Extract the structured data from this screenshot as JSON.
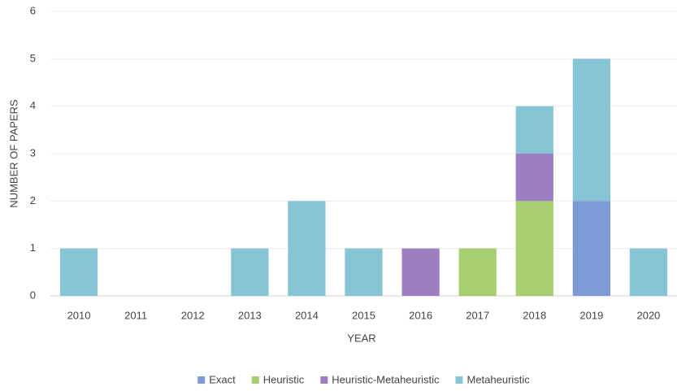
{
  "chart_data": {
    "type": "stacked_bar",
    "x_label": "YEAR",
    "y_label": "NUMBER OF PAPERS",
    "categories": [
      "2010",
      "2011",
      "2012",
      "2013",
      "2014",
      "2015",
      "2016",
      "2017",
      "2018",
      "2019",
      "2020"
    ],
    "series": [
      {
        "name": "Exact",
        "color": "#7f9bd5",
        "values": [
          0,
          0,
          0,
          0,
          0,
          0,
          0,
          0,
          0,
          2,
          0
        ]
      },
      {
        "name": "Heuristic",
        "color": "#a8cf6f",
        "values": [
          0,
          0,
          0,
          0,
          0,
          0,
          0,
          1,
          2,
          0,
          0
        ]
      },
      {
        "name": "Heuristic-Metaheuristic",
        "color": "#9d7fc1",
        "values": [
          0,
          0,
          0,
          0,
          0,
          0,
          1,
          0,
          1,
          0,
          0
        ]
      },
      {
        "name": "Metaheuristic",
        "color": "#88c5d4",
        "values": [
          1,
          0,
          0,
          1,
          2,
          1,
          0,
          0,
          1,
          3,
          1
        ]
      }
    ],
    "ylim": [
      0,
      6
    ],
    "yticks": [
      0,
      1,
      2,
      3,
      4,
      5,
      6
    ],
    "grid": true,
    "legend": "bottom"
  }
}
